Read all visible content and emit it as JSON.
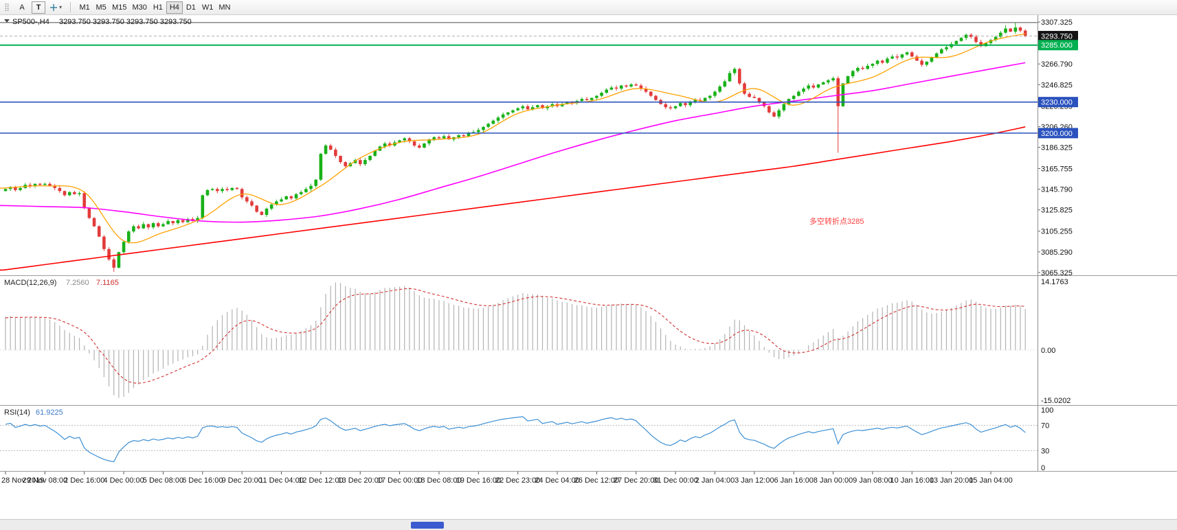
{
  "toolbar": {
    "a_label": "A",
    "t_label": "T",
    "icons": {
      "grip": "⣿",
      "caret_down": "▾"
    },
    "timeframes": [
      {
        "label": "M1",
        "active": false
      },
      {
        "label": "M5",
        "active": false
      },
      {
        "label": "M15",
        "active": false
      },
      {
        "label": "M30",
        "active": false
      },
      {
        "label": "H1",
        "active": false
      },
      {
        "label": "H4",
        "active": true
      },
      {
        "label": "D1",
        "active": false
      },
      {
        "label": "W1",
        "active": false
      },
      {
        "label": "MN",
        "active": false
      }
    ]
  },
  "chart": {
    "symbol_title": "SP500-,H4",
    "ohlc_text": "3293.750 3293.750 3293.750 3293.750",
    "annotation": {
      "text": "多空转折点3285",
      "color": "#ff3b3b"
    },
    "price_axis": {
      "min": 3063.3,
      "max": 3314.0,
      "labels": [
        "3307.325",
        "3266.790",
        "3246.825",
        "3226.255",
        "3206.260",
        "3186.325",
        "3165.755",
        "3145.790",
        "3125.825",
        "3105.255",
        "3085.290",
        "3065.325"
      ]
    },
    "price_boxes": [
      {
        "text": "3293.750",
        "price": 3293.75,
        "bg": "#141414",
        "fg": "#ffffff"
      },
      {
        "text": "3285.000",
        "price": 3285.0,
        "bg": "#00b050",
        "fg": "#ffffff"
      },
      {
        "text": "3230.000",
        "price": 3230.0,
        "bg": "#2a52be",
        "fg": "#ffffff"
      },
      {
        "text": "3200.000",
        "price": 3200.0,
        "bg": "#2a52be",
        "fg": "#ffffff"
      }
    ],
    "hlines": [
      {
        "price": 3306.8,
        "color": "#4a4a4a",
        "width": 1,
        "dash": "",
        "name": "high-line",
        "interactable": "true"
      },
      {
        "price": 3293.75,
        "color": "#b0b0b0",
        "width": 1,
        "dash": "4 3",
        "name": "bid-price-line",
        "interactable": "false"
      },
      {
        "price": 3285.0,
        "color": "#00b050",
        "width": 2,
        "dash": "",
        "name": "hline-3285",
        "interactable": "true"
      },
      {
        "price": 3230.0,
        "color": "#2a52be",
        "width": 1.6,
        "dash": "",
        "name": "hline-3230",
        "interactable": "true"
      },
      {
        "price": 3200.0,
        "color": "#2a52be",
        "width": 1.6,
        "dash": "",
        "name": "hline-3200",
        "interactable": "true"
      }
    ],
    "colors": {
      "up": "#18b118",
      "down": "#e23b3b",
      "ma_fast": "#ffa000",
      "ma_mid": "#ff00ff",
      "ma_slow": "#ff0000",
      "macd_hist": "#b2b2b2",
      "macd_signal": "#d23030",
      "rsi": "#3c8fd4"
    }
  },
  "macd_panel": {
    "title": "MACD(12,26,9)",
    "value_main": "7.2560",
    "value_signal": "7.1165",
    "scale_top": "14.1763",
    "scale_zero": "0.00",
    "scale_bottom": "-15.0202"
  },
  "rsi_panel": {
    "title": "RSI(14)",
    "value": "61.9225",
    "levels": [
      "100",
      "70",
      "30",
      "0"
    ]
  },
  "chart_data": {
    "type": "candlestick",
    "title": "SP500-,H4",
    "symbol": "SP500-",
    "timeframe": "H4",
    "bars_per_label": 8,
    "x_labels": [
      "28 Nov 2019",
      "29 Nov 08:00",
      "2 Dec 16:00",
      "4 Dec 00:00",
      "5 Dec 08:00",
      "6 Dec 16:00",
      "9 Dec 20:00",
      "11 Dec 04:00",
      "12 Dec 12:00",
      "13 Dec 20:00",
      "17 Dec 00:00",
      "18 Dec 08:00",
      "19 Dec 16:00",
      "22 Dec 23:00",
      "24 Dec 04:00",
      "26 Dec 12:00",
      "27 Dec 20:00",
      "31 Dec 00:00",
      "2 Jan 04:00",
      "3 Jan 12:00",
      "6 Jan 16:00",
      "8 Jan 00:00",
      "9 Jan 08:00",
      "10 Jan 16:00",
      "13 Jan 20:00",
      "15 Jan 04:00"
    ],
    "closes": [
      3146,
      3148,
      3145,
      3147,
      3150,
      3149,
      3151,
      3150,
      3151,
      3149,
      3147,
      3144,
      3140,
      3143,
      3141,
      3142,
      3128,
      3118,
      3110,
      3100,
      3088,
      3078,
      3070,
      3085,
      3095,
      3105,
      3110,
      3108,
      3112,
      3109,
      3113,
      3110,
      3112,
      3115,
      3113,
      3116,
      3114,
      3117,
      3115,
      3118,
      3140,
      3145,
      3146,
      3144,
      3146,
      3145,
      3147,
      3146,
      3138,
      3134,
      3130,
      3124,
      3121,
      3127,
      3131,
      3134,
      3136,
      3139,
      3137,
      3141,
      3143,
      3146,
      3149,
      3155,
      3180,
      3188,
      3184,
      3178,
      3172,
      3168,
      3171,
      3174,
      3170,
      3174,
      3178,
      3183,
      3187,
      3190,
      3188,
      3191,
      3193,
      3195,
      3192,
      3188,
      3186,
      3190,
      3194,
      3196,
      3195,
      3197,
      3194,
      3196,
      3198,
      3197,
      3200,
      3201,
      3203,
      3206,
      3209,
      3212,
      3215,
      3218,
      3220,
      3222,
      3224,
      3226,
      3223,
      3225,
      3227,
      3224,
      3226,
      3228,
      3226,
      3228,
      3230,
      3229,
      3231,
      3233,
      3232,
      3234,
      3236,
      3239,
      3242,
      3244,
      3243,
      3246,
      3245,
      3247,
      3246,
      3243,
      3240,
      3236,
      3232,
      3228,
      3225,
      3224,
      3226,
      3229,
      3227,
      3230,
      3232,
      3231,
      3234,
      3236,
      3240,
      3245,
      3250,
      3258,
      3262,
      3248,
      3238,
      3235,
      3234,
      3230,
      3226,
      3220,
      3216,
      3222,
      3228,
      3233,
      3236,
      3240,
      3243,
      3246,
      3244,
      3247,
      3249,
      3251,
      3253,
      3226,
      3248,
      3255,
      3260,
      3263,
      3262,
      3265,
      3267,
      3270,
      3268,
      3272,
      3274,
      3273,
      3276,
      3278,
      3274,
      3270,
      3266,
      3269,
      3273,
      3277,
      3281,
      3283,
      3286,
      3289,
      3292,
      3295,
      3293,
      3288,
      3284,
      3287,
      3290,
      3293,
      3297,
      3301,
      3298,
      3302,
      3299,
      3293.75
    ],
    "wick_overrides": {
      "22": {
        "low": 3066
      },
      "148": {
        "high": 3263.5
      },
      "169": {
        "low": 3181
      },
      "203": {
        "high": 3304
      },
      "205": {
        "high": 3306.5
      }
    },
    "ma_anchor_bars": [
      0,
      8,
      16,
      24,
      32,
      40,
      48,
      56,
      64,
      72,
      80,
      88,
      96,
      104,
      112,
      120,
      128,
      136,
      144,
      152,
      160,
      168,
      176,
      184,
      192,
      200,
      207
    ],
    "ma_fast": [
      3147,
      3149,
      3143,
      3096,
      3104,
      3118,
      3141,
      3131,
      3149,
      3176,
      3191,
      3194,
      3199,
      3219,
      3227,
      3232,
      3243,
      3237,
      3230,
      3243,
      3227,
      3244,
      3254,
      3272,
      3274,
      3289,
      3296
    ],
    "ma_mid": [
      3130,
      3129,
      3128,
      3124,
      3119,
      3115,
      3114,
      3116,
      3120,
      3127,
      3136,
      3147,
      3158,
      3170,
      3182,
      3193,
      3203,
      3212,
      3219,
      3226,
      3231,
      3236,
      3241,
      3248,
      3255,
      3262,
      3268
    ],
    "ma_slow": [
      3068,
      3073,
      3078,
      3083,
      3088,
      3093,
      3098,
      3103,
      3108,
      3113,
      3118,
      3123,
      3128,
      3133,
      3138,
      3143,
      3148,
      3153,
      3158,
      3163,
      3168,
      3174,
      3180,
      3186,
      3192,
      3199,
      3206
    ],
    "indicator_warmup": {
      "start": 3105,
      "count": 40,
      "wobble": 1.2
    },
    "macd_params": [
      12,
      26,
      9
    ],
    "rsi_period": 14
  }
}
